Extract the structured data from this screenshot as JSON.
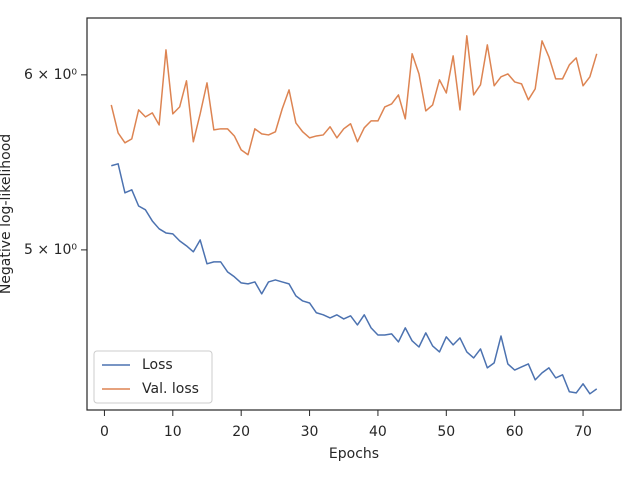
{
  "chart_data": {
    "type": "line",
    "xlabel": "Epochs",
    "ylabel": "Negative log-likelihood",
    "x": [
      1,
      2,
      3,
      4,
      5,
      6,
      7,
      8,
      9,
      10,
      11,
      12,
      13,
      14,
      15,
      16,
      17,
      18,
      19,
      20,
      21,
      22,
      23,
      24,
      25,
      26,
      27,
      28,
      29,
      30,
      31,
      32,
      33,
      34,
      35,
      36,
      37,
      38,
      39,
      40,
      41,
      42,
      43,
      44,
      45,
      46,
      47,
      48,
      49,
      50,
      51,
      52,
      53,
      54,
      55,
      56,
      57,
      58,
      59,
      60,
      61,
      62,
      63,
      64,
      65,
      66,
      67,
      68,
      69,
      70,
      71,
      72
    ],
    "series": [
      {
        "name": "Loss",
        "color": "#4c72b0",
        "values": [
          5.458,
          5.469,
          5.306,
          5.323,
          5.234,
          5.213,
          5.153,
          5.111,
          5.089,
          5.084,
          5.047,
          5.021,
          4.99,
          5.052,
          4.928,
          4.938,
          4.938,
          4.887,
          4.862,
          4.831,
          4.826,
          4.836,
          4.776,
          4.836,
          4.846,
          4.836,
          4.826,
          4.766,
          4.741,
          4.731,
          4.683,
          4.673,
          4.658,
          4.673,
          4.653,
          4.668,
          4.624,
          4.673,
          4.61,
          4.576,
          4.576,
          4.581,
          4.543,
          4.61,
          4.548,
          4.519,
          4.586,
          4.524,
          4.496,
          4.567,
          4.529,
          4.562,
          4.496,
          4.468,
          4.51,
          4.422,
          4.445,
          4.571,
          4.44,
          4.412,
          4.426,
          4.44,
          4.367,
          4.399,
          4.422,
          4.376,
          4.39,
          4.313,
          4.308,
          4.349,
          4.304,
          4.326
        ]
      },
      {
        "name": "Val. loss",
        "color": "#dd8452",
        "values": [
          5.815,
          5.648,
          5.59,
          5.613,
          5.785,
          5.743,
          5.767,
          5.695,
          6.158,
          5.761,
          5.803,
          5.963,
          5.596,
          5.761,
          5.95,
          5.666,
          5.672,
          5.672,
          5.63,
          5.549,
          5.521,
          5.672,
          5.642,
          5.636,
          5.654,
          5.791,
          5.907,
          5.707,
          5.654,
          5.619,
          5.63,
          5.636,
          5.684,
          5.619,
          5.672,
          5.702,
          5.596,
          5.678,
          5.719,
          5.719,
          5.803,
          5.821,
          5.876,
          5.731,
          6.133,
          6.006,
          5.779,
          5.815,
          5.969,
          5.888,
          6.12,
          5.785,
          6.249,
          5.876,
          5.938,
          6.19,
          5.932,
          5.988,
          6.006,
          5.956,
          5.944,
          5.846,
          5.913,
          6.216,
          6.114,
          5.975,
          5.975,
          6.063,
          6.107,
          5.932,
          5.988,
          6.133
        ]
      }
    ],
    "xlim": [
      -2.55,
      75.55
    ],
    "xticks": [
      0,
      10,
      20,
      30,
      40,
      50,
      60,
      70
    ],
    "ylim": [
      4.232,
      6.366
    ],
    "yscale": "log",
    "yticks": [
      {
        "value": 5,
        "label": "5 × 10⁰"
      },
      {
        "value": 6,
        "label": "6 × 10⁰"
      }
    ],
    "grid": false,
    "legend": "lower left"
  }
}
